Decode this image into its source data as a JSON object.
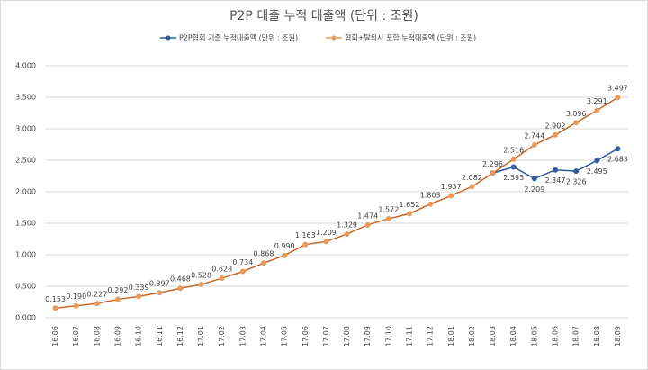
{
  "chart_data": {
    "type": "line",
    "title": "P2P 대출 누적 대출액 (단위 : 조원)",
    "categories": [
      "16.06",
      "16.07",
      "16.08",
      "16.09",
      "16.10",
      "16.11",
      "16.12",
      "17.01",
      "17.02",
      "17.03",
      "17.04",
      "17.05",
      "17.06",
      "17.07",
      "17.08",
      "17.09",
      "17.10",
      "17.11",
      "17.12",
      "18.01",
      "18.02",
      "18.03",
      "18.04",
      "18.05",
      "18.06",
      "18.07",
      "18.08",
      "18.09"
    ],
    "series": [
      {
        "name": "P2P협회 기준 누적대출액 (단위 : 조원)",
        "color": "#2f5c9c",
        "values": [
          null,
          null,
          null,
          null,
          null,
          null,
          null,
          null,
          null,
          null,
          null,
          null,
          null,
          null,
          null,
          null,
          null,
          null,
          null,
          null,
          null,
          2.296,
          2.393,
          2.209,
          2.347,
          2.326,
          2.495,
          2.683
        ],
        "value_labels": [
          null,
          null,
          null,
          null,
          null,
          null,
          null,
          null,
          null,
          null,
          null,
          null,
          null,
          null,
          null,
          null,
          null,
          null,
          null,
          null,
          null,
          null,
          "2.393",
          "2.209",
          "2.347",
          "2.326",
          "2.495",
          "2.683"
        ]
      },
      {
        "name": "협회+탈퇴사 포함 누적대출액 (단위 : 조원)",
        "color": "#e89a5a",
        "values": [
          0.153,
          0.19,
          0.227,
          0.292,
          0.339,
          0.397,
          0.468,
          0.528,
          0.628,
          0.734,
          0.868,
          0.99,
          1.163,
          1.209,
          1.329,
          1.474,
          1.572,
          1.652,
          1.803,
          1.937,
          2.082,
          2.296,
          2.516,
          2.744,
          2.902,
          3.096,
          3.291,
          3.497
        ],
        "value_labels": [
          "0.153",
          "0.190",
          "0.227",
          "0.292",
          "0.339",
          "0.397",
          "0.468",
          "0.528",
          "0.628",
          "0.734",
          "0.868",
          "0.990",
          "1.163",
          "1.209",
          "1.329",
          "1.474",
          "1.572",
          "1.652",
          "1.803",
          "1.937",
          "2.082",
          "2.296",
          "2.516",
          "2.744",
          "2.902",
          "3.096",
          "3.291",
          "3.497"
        ]
      }
    ],
    "ylim": [
      0,
      4
    ],
    "yticks": [
      {
        "value": 0,
        "label": "0.000"
      },
      {
        "value": 0.5,
        "label": "0.500"
      },
      {
        "value": 1,
        "label": "1.000"
      },
      {
        "value": 1.5,
        "label": "1.500"
      },
      {
        "value": 2,
        "label": "2.000"
      },
      {
        "value": 2.5,
        "label": "2.500"
      },
      {
        "value": 3,
        "label": "3.000"
      },
      {
        "value": 3.5,
        "label": "3.500"
      },
      {
        "value": 4,
        "label": "4.000"
      }
    ],
    "grid": true
  }
}
